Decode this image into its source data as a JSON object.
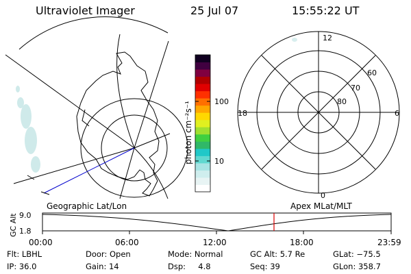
{
  "header": {
    "title": "Ultraviolet Imager",
    "date": "25 Jul 07",
    "time": "15:55:22 UT"
  },
  "colorbar": {
    "unit_label": "photon cm⁻²s⁻¹",
    "tick_100": "100",
    "tick_10": "10",
    "colors": [
      "#ffffff",
      "#e8f4f4",
      "#cfeeee",
      "#a8e4e4",
      "#60d8d0",
      "#20c8c8",
      "#30b868",
      "#40d040",
      "#a0e030",
      "#e0f020",
      "#ffd800",
      "#ffa800",
      "#ff7000",
      "#ff3000",
      "#e00000",
      "#b00000",
      "#800040",
      "#400040",
      "#100020"
    ]
  },
  "left_panel": {
    "caption": "Geographic Lat/Lon"
  },
  "right_panel": {
    "caption": "Apex MLat/MLT",
    "mlt_labels": {
      "top": "12",
      "left": "18",
      "right": "6",
      "bottom": "0"
    },
    "lat_labels": [
      "60",
      "70",
      "80"
    ]
  },
  "timeline": {
    "ylabel": "GC Alt",
    "ytick_high": "9.0",
    "ytick_low": "1.8",
    "xticks": [
      "00:00",
      "06:00",
      "12:00",
      "18:00",
      "23:59"
    ],
    "current_time_fraction": 0.664
  },
  "info": {
    "flt": "Flt: LBHL",
    "ip": "IP: 36.0",
    "door": "Door: Open",
    "gain": "Gain: 14",
    "mode": "Mode: Normal",
    "dsp": "Dsp:     4.8",
    "gc_alt": "GC Alt: 5.7 Re",
    "seq": "Seq: 39",
    "glat": "GLat: −75.5",
    "glon": "GLon: 358.7"
  }
}
